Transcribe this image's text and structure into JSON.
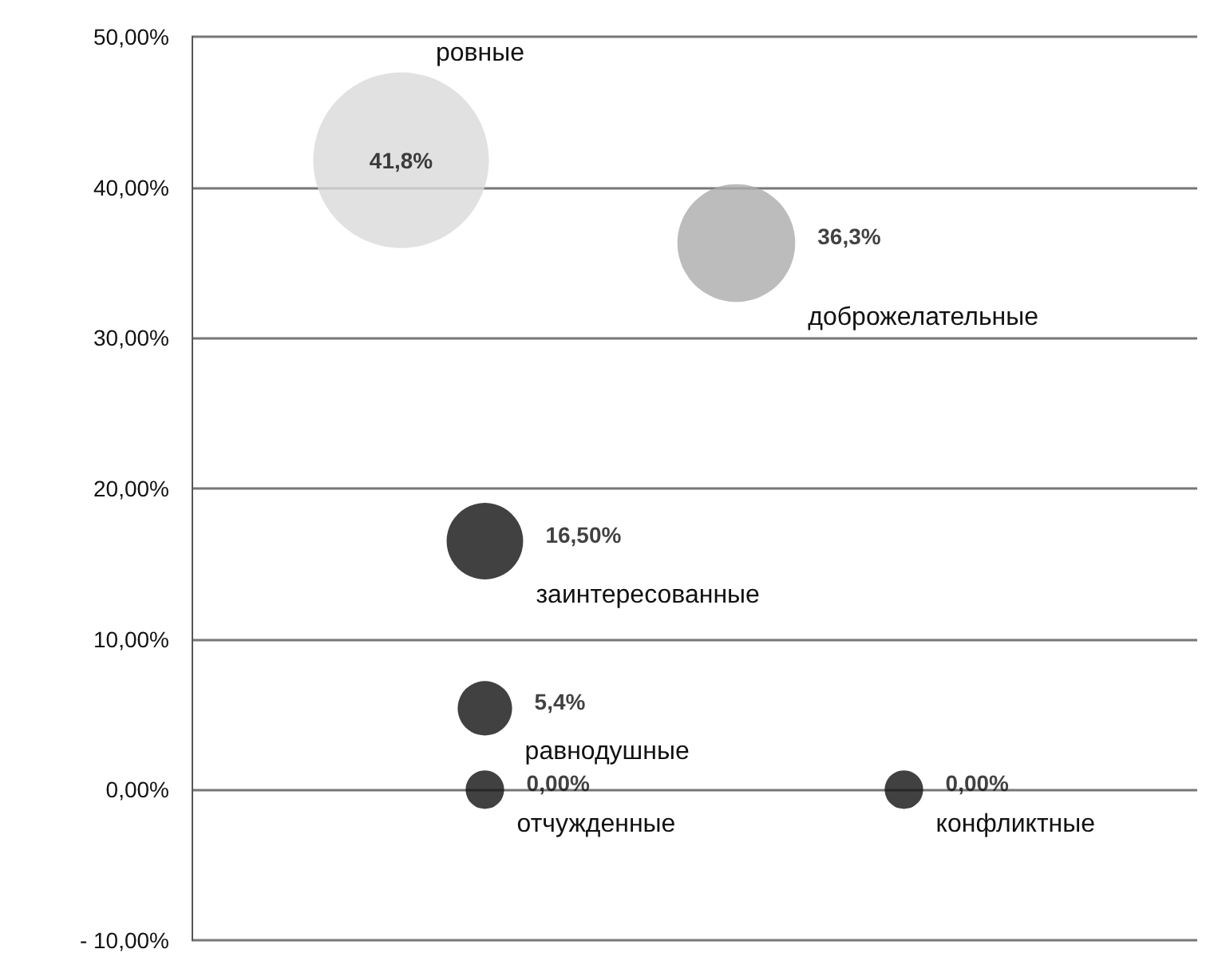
{
  "chart_data": {
    "type": "bubble",
    "categories": [
      null,
      null,
      null,
      null,
      null,
      null,
      null,
      null,
      null,
      null,
      null,
      null
    ],
    "series": [
      {
        "name": "ровные",
        "color": "#d9d9d9",
        "values": [
          null,
          null,
          41.8,
          null,
          null,
          null,
          null,
          null,
          null,
          null,
          null,
          null
        ],
        "sizes": [
          null,
          null,
          1,
          null,
          null,
          null,
          null,
          null,
          null,
          null,
          null,
          null
        ],
        "value_labels": [
          null,
          null,
          "41,8%",
          null,
          null,
          null,
          null,
          null,
          null,
          null,
          null,
          null
        ]
      },
      {
        "name": "доброжелательные",
        "color": "#ababab",
        "values": [
          null,
          null,
          null,
          null,
          null,
          null,
          36.3,
          null,
          null,
          null,
          null,
          null
        ],
        "sizes": [
          null,
          null,
          null,
          null,
          null,
          null,
          0.45,
          null,
          null,
          null,
          null,
          null
        ],
        "value_labels": [
          null,
          null,
          null,
          null,
          null,
          null,
          "36,3%",
          null,
          null,
          null,
          null,
          null
        ]
      },
      {
        "name": "заинтересованные",
        "color": "#111111",
        "values": [
          null,
          null,
          null,
          16.5,
          null,
          null,
          null,
          null,
          null,
          null,
          null,
          null
        ],
        "sizes": [
          null,
          null,
          null,
          0.19,
          null,
          null,
          null,
          null,
          null,
          null,
          null,
          null
        ],
        "value_labels": [
          null,
          null,
          null,
          "16,50%",
          null,
          null,
          null,
          null,
          null,
          null,
          null,
          null
        ]
      },
      {
        "name": "равнодушные",
        "color": "#111111",
        "values": [
          null,
          null,
          null,
          5.4,
          null,
          null,
          null,
          null,
          null,
          null,
          null,
          null
        ],
        "sizes": [
          null,
          null,
          null,
          0.096,
          null,
          null,
          null,
          null,
          null,
          null,
          null,
          null
        ],
        "value_labels": [
          null,
          null,
          null,
          "5,4%",
          null,
          null,
          null,
          null,
          null,
          null,
          null,
          null
        ]
      },
      {
        "name": "отчужденные",
        "color": "#111111",
        "values": [
          null,
          null,
          null,
          0,
          null,
          null,
          null,
          null,
          null,
          null,
          null,
          null
        ],
        "sizes": [
          null,
          null,
          null,
          0.048,
          null,
          null,
          null,
          null,
          null,
          null,
          null,
          null
        ],
        "value_labels": [
          null,
          null,
          null,
          "0,00%",
          null,
          null,
          null,
          null,
          null,
          null,
          null,
          null
        ]
      },
      {
        "name": "конфликтные",
        "color": "#111111",
        "values": [
          null,
          null,
          null,
          null,
          null,
          null,
          null,
          null,
          0,
          null,
          null,
          null
        ],
        "sizes": [
          null,
          null,
          null,
          null,
          null,
          null,
          null,
          null,
          0.048,
          null,
          null,
          null
        ],
        "value_labels": [
          null,
          null,
          null,
          null,
          null,
          null,
          null,
          null,
          "0,00%",
          null,
          null,
          null
        ]
      }
    ],
    "ylim": [
      -10,
      50
    ],
    "yticks": [
      {
        "value": -10,
        "label": "- 10,00%"
      },
      {
        "value": 0,
        "label": "0,00%"
      },
      {
        "value": 10,
        "label": "10,00%"
      },
      {
        "value": 20,
        "label": "20,00%"
      },
      {
        "value": 30,
        "label": "30,00%"
      },
      {
        "value": 40,
        "label": "40,00%"
      },
      {
        "value": 50,
        "label": "50,00%"
      }
    ],
    "grid": "y"
  }
}
